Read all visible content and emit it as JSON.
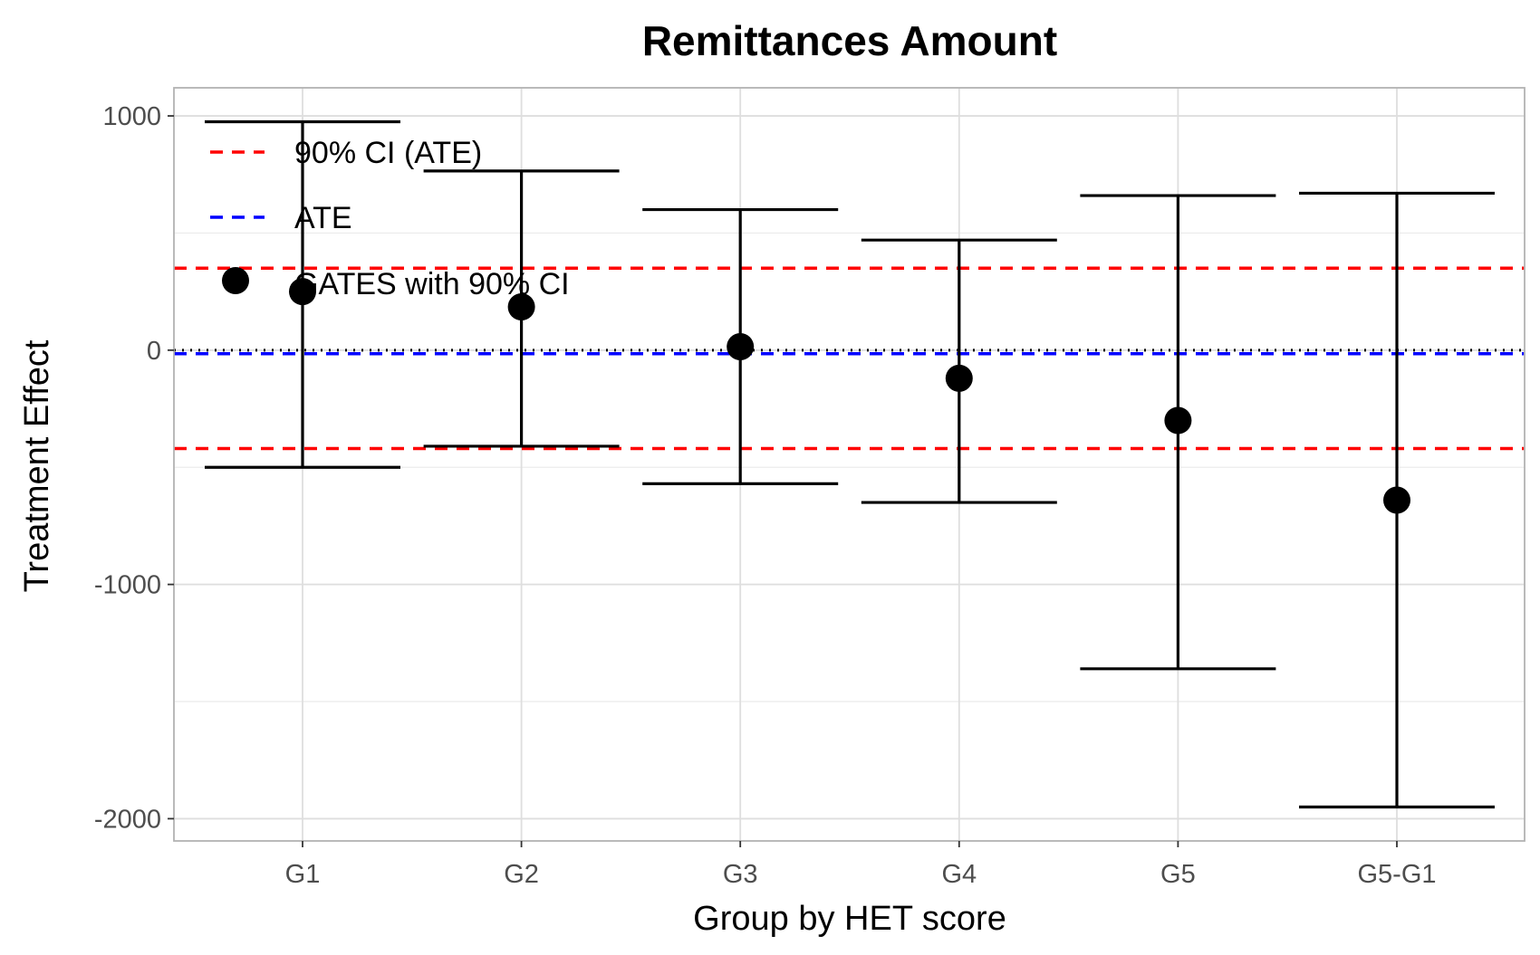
{
  "chart_data": {
    "type": "scatter",
    "title": "Remittances Amount",
    "xlabel": "Group by HET score",
    "ylabel": "Treatment Effect",
    "categories": [
      "G1",
      "G2",
      "G3",
      "G4",
      "G5",
      "G5-G1"
    ],
    "ylim": [
      -2095,
      1120
    ],
    "yticks": [
      1000,
      0,
      -1000,
      -2000
    ],
    "ytick_labels": [
      "1000",
      "0",
      "-1000",
      "-2000"
    ],
    "y_minor_gridlines": [
      500,
      -500,
      -1500
    ],
    "grid": true,
    "series": [
      {
        "name": "GATES with 90% CI",
        "values": [
          250,
          185,
          15,
          -120,
          -300,
          -640
        ],
        "ci_low": [
          -500,
          -410,
          -570,
          -650,
          -1360,
          -1950
        ],
        "ci_high": [
          975,
          765,
          600,
          470,
          660,
          670
        ]
      }
    ],
    "reference_lines": [
      {
        "name": "90% CI (ATE)",
        "value": 350,
        "style": "dashed"
      },
      {
        "name": "90% CI (ATE)",
        "value": -420,
        "style": "dashed"
      },
      {
        "name": "ATE",
        "value": -15,
        "style": "dashed"
      },
      {
        "name": "",
        "value": 0,
        "style": "dotted"
      }
    ],
    "legend": {
      "position": "top-left",
      "entries": [
        {
          "label": "90% CI (ATE)",
          "kind": "dashed-line",
          "color": "#ff0000"
        },
        {
          "label": "ATE",
          "kind": "dashed-line",
          "color": "#0000ff"
        },
        {
          "label": "GATES with 90% CI",
          "kind": "point",
          "color": "#000000"
        }
      ]
    },
    "colors": {
      "ci_ate": "#ff0000",
      "ate": "#0000ff",
      "gates": "#000000",
      "zero_line": "#000000",
      "grid": "#dedede",
      "panel_border": "#b3b3b3"
    }
  }
}
